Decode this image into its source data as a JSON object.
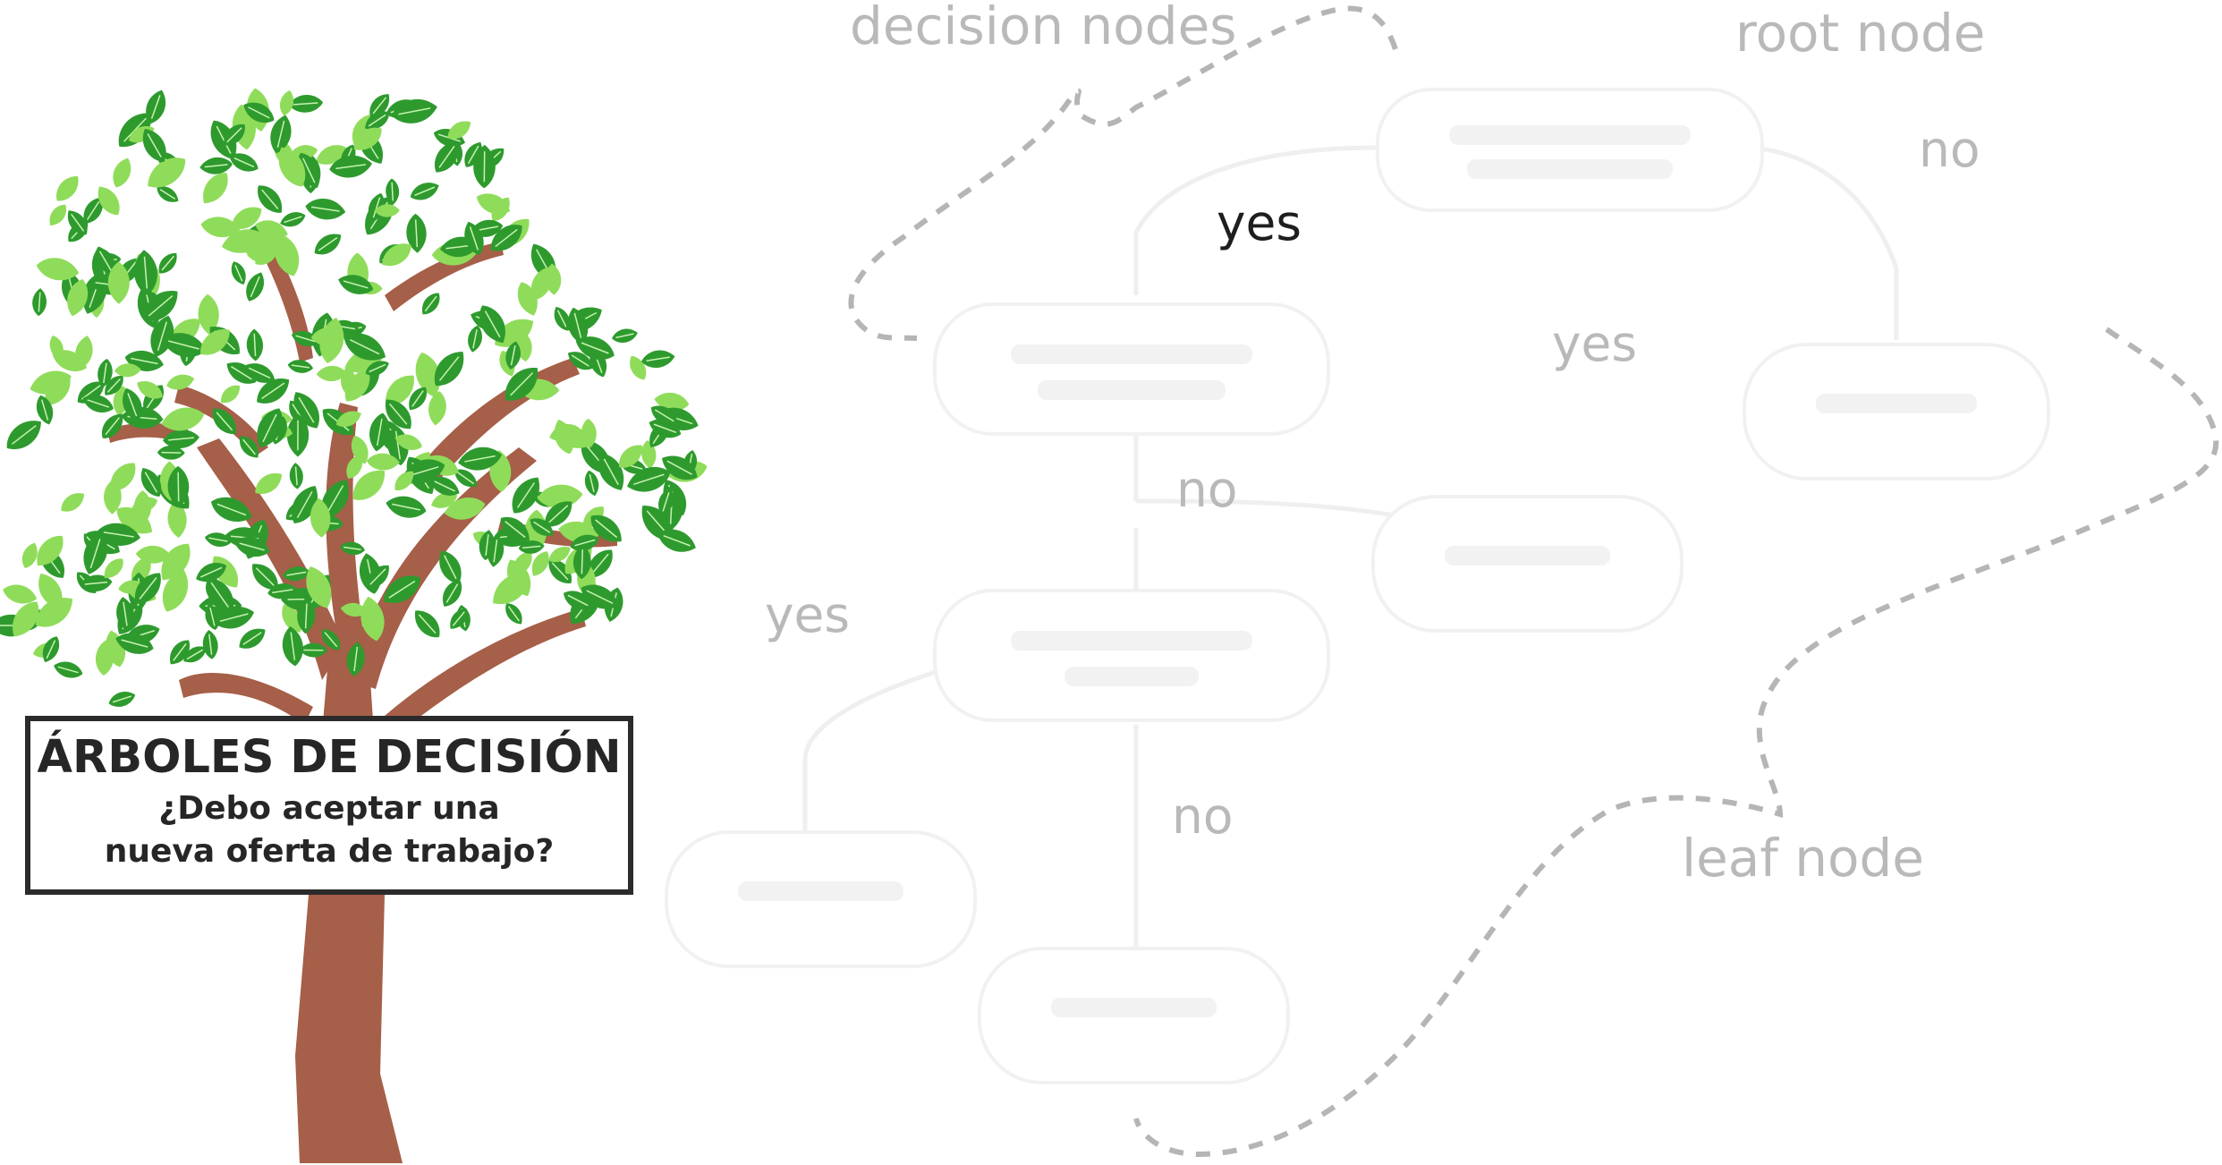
{
  "diagram": {
    "sign": {
      "title": "ÁRBOLES DE DECISIÓN",
      "subtitle_line1": "¿Debo aceptar una",
      "subtitle_line2": "nueva oferta de trabajo?"
    },
    "legend_labels": {
      "decision_nodes": "decision nodes",
      "root_node": "root node",
      "leaf_node": "leaf node"
    },
    "edge_labels": {
      "root_yes": "yes",
      "root_no": "no",
      "mid_yes": "yes",
      "mid_no": "no",
      "left_yes": "yes",
      "lower_no": "no"
    },
    "colors": {
      "trunk": "#a65f48",
      "leaf_dark": "#2e9a2e",
      "leaf_light": "#8fdc5a",
      "label_gray": "#b9b9b9",
      "label_dark": "#1e1e1e",
      "dashed_outline": "#b5b5b5",
      "faint_node": "#f1f1f1"
    }
  }
}
